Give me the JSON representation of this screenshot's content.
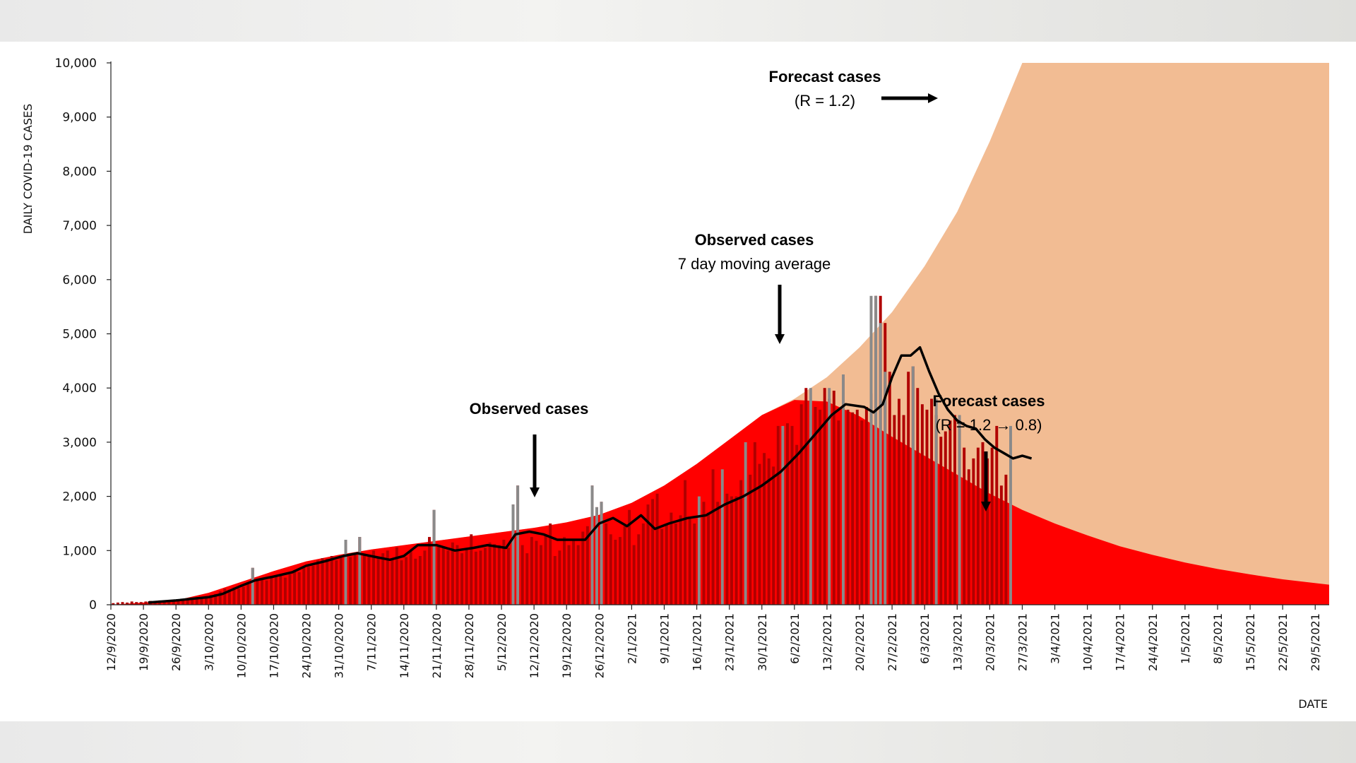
{
  "chart_data": {
    "type": "bar+line+area",
    "title": "",
    "ylabel": "DAILY COVID-19 CASES",
    "xlabel": "DATE",
    "ylim": [
      0,
      10000
    ],
    "yticks": [
      "0",
      "1,000",
      "2,000",
      "3,000",
      "4,000",
      "5,000",
      "6,000",
      "7,000",
      "8,000",
      "9,000",
      "10,000"
    ],
    "x_start": "12/9/2020",
    "x_end": "1/6/2021",
    "x_days": 262,
    "x_tick_labels": [
      "12/9/2020",
      "19/9/2020",
      "26/9/2020",
      "3/10/2020",
      "10/10/2020",
      "17/10/2020",
      "24/10/2020",
      "31/10/2020",
      "7/11/2020",
      "14/11/2020",
      "21/11/2020",
      "28/11/2020",
      "5/12/2020",
      "12/12/2020",
      "19/12/2020",
      "26/12/2020",
      "2/1/2021",
      "9/1/2021",
      "16/1/2021",
      "23/1/2021",
      "30/1/2021",
      "6/2/2021",
      "13/2/2021",
      "20/2/2021",
      "27/2/2021",
      "6/3/2021",
      "13/3/2021",
      "20/3/2021",
      "27/3/2021",
      "3/4/2021",
      "10/4/2021",
      "17/4/2021",
      "24/4/2021",
      "1/5/2021",
      "8/5/2021",
      "15/5/2021",
      "22/5/2021",
      "29/5/2021"
    ],
    "series": [
      {
        "name": "Forecast cases (R = 1.2)",
        "type": "area",
        "color": "#f2bc93",
        "points": [
          [
            0,
            0
          ],
          [
            14,
            80
          ],
          [
            21,
            220
          ],
          [
            28,
            420
          ],
          [
            35,
            620
          ],
          [
            42,
            800
          ],
          [
            49,
            920
          ],
          [
            56,
            1020
          ],
          [
            63,
            1100
          ],
          [
            70,
            1180
          ],
          [
            77,
            1260
          ],
          [
            84,
            1340
          ],
          [
            91,
            1420
          ],
          [
            98,
            1520
          ],
          [
            105,
            1660
          ],
          [
            112,
            1880
          ],
          [
            119,
            2200
          ],
          [
            126,
            2600
          ],
          [
            133,
            3050
          ],
          [
            140,
            3500
          ],
          [
            147,
            3800
          ],
          [
            154,
            4200
          ],
          [
            161,
            4750
          ],
          [
            168,
            5400
          ],
          [
            175,
            6250
          ],
          [
            182,
            7250
          ],
          [
            189,
            8550
          ],
          [
            196,
            10000
          ],
          [
            262,
            10000
          ]
        ]
      },
      {
        "name": "Forecast cases (R = 1.2 → 0.8)",
        "type": "area",
        "color": "#ff0000",
        "points": [
          [
            0,
            0
          ],
          [
            14,
            80
          ],
          [
            21,
            220
          ],
          [
            28,
            420
          ],
          [
            35,
            620
          ],
          [
            42,
            800
          ],
          [
            49,
            920
          ],
          [
            56,
            1020
          ],
          [
            63,
            1100
          ],
          [
            70,
            1180
          ],
          [
            77,
            1260
          ],
          [
            84,
            1340
          ],
          [
            91,
            1420
          ],
          [
            98,
            1520
          ],
          [
            105,
            1660
          ],
          [
            112,
            1880
          ],
          [
            119,
            2200
          ],
          [
            126,
            2600
          ],
          [
            133,
            3050
          ],
          [
            140,
            3500
          ],
          [
            147,
            3780
          ],
          [
            154,
            3750
          ],
          [
            161,
            3480
          ],
          [
            168,
            3100
          ],
          [
            175,
            2750
          ],
          [
            182,
            2400
          ],
          [
            189,
            2050
          ],
          [
            196,
            1750
          ],
          [
            203,
            1500
          ],
          [
            210,
            1280
          ],
          [
            217,
            1080
          ],
          [
            224,
            920
          ],
          [
            231,
            780
          ],
          [
            238,
            660
          ],
          [
            245,
            560
          ],
          [
            252,
            470
          ],
          [
            262,
            370
          ]
        ]
      },
      {
        "name": "Observed cases",
        "type": "bar",
        "color": "#b00000",
        "values": [
          30,
          40,
          50,
          40,
          60,
          50,
          50,
          60,
          70,
          50,
          80,
          60,
          90,
          70,
          80,
          100,
          110,
          120,
          140,
          150,
          160,
          180,
          200,
          250,
          300,
          280,
          320,
          300,
          330,
          400,
          680,
          480,
          460,
          450,
          500,
          520,
          540,
          500,
          560,
          640,
          600,
          680,
          700,
          720,
          820,
          860,
          850,
          900,
          820,
          900,
          1200,
          880,
          950,
          1250,
          920,
          900,
          1000,
          880,
          950,
          1000,
          850,
          1060,
          820,
          880,
          1000,
          850,
          900,
          1000,
          1250,
          1750,
          1100,
          1050,
          1000,
          1150,
          1100,
          950,
          1050,
          1300,
          980,
          1000,
          1050,
          1150,
          1120,
          1100,
          1200,
          1050,
          1850,
          2200,
          1100,
          950,
          1250,
          1180,
          1100,
          1300,
          1500,
          900,
          1000,
          1250,
          1100,
          1200,
          1100,
          1350,
          1450,
          2200,
          1800,
          1900,
          1500,
          1300,
          1200,
          1250,
          1450,
          1750,
          1100,
          1300,
          1500,
          1850,
          1950,
          2050,
          1400,
          1500,
          1700,
          1500,
          1650,
          2300,
          1600,
          1500,
          1600,
          1900,
          1700,
          2500,
          1900,
          2200,
          2050,
          2000,
          2000,
          2300,
          1950,
          2400,
          3000,
          2600,
          2800,
          2700,
          2550,
          3300,
          3200,
          3350,
          3300,
          2950,
          3700,
          4000,
          3500,
          3650,
          3600,
          4000,
          3800,
          3950,
          3400,
          4250,
          3600,
          3550,
          3600,
          3400,
          3650,
          3900,
          5700,
          5700,
          5200,
          4300,
          3500,
          3800,
          3500,
          4300,
          4400,
          4000,
          3700,
          3600,
          3800,
          3500,
          3100,
          3200,
          3400,
          3500,
          3400,
          2900,
          2500,
          2700,
          2900,
          3000,
          2700,
          2900,
          3300,
          2200,
          2400
        ],
        "gray_peaks": [
          [
            30,
            680
          ],
          [
            50,
            1200
          ],
          [
            53,
            1250
          ],
          [
            69,
            1750
          ],
          [
            86,
            1850
          ],
          [
            87,
            2200
          ],
          [
            103,
            2200
          ],
          [
            104,
            1800
          ],
          [
            105,
            1900
          ],
          [
            126,
            2000
          ],
          [
            131,
            2500
          ],
          [
            136,
            3000
          ],
          [
            144,
            3300
          ],
          [
            150,
            4000
          ],
          [
            154,
            4000
          ],
          [
            157,
            4250
          ],
          [
            163,
            5700
          ],
          [
            164,
            5700
          ],
          [
            165,
            5200
          ],
          [
            166,
            4300
          ],
          [
            172,
            4400
          ],
          [
            177,
            3800
          ],
          [
            182,
            3500
          ],
          [
            193,
            3300
          ]
        ]
      },
      {
        "name": "7 day moving average",
        "type": "line",
        "color": "#000000",
        "points": [
          [
            8,
            40
          ],
          [
            14,
            80
          ],
          [
            21,
            140
          ],
          [
            24,
            200
          ],
          [
            28,
            350
          ],
          [
            31,
            450
          ],
          [
            35,
            520
          ],
          [
            39,
            600
          ],
          [
            42,
            720
          ],
          [
            46,
            800
          ],
          [
            50,
            900
          ],
          [
            53,
            950
          ],
          [
            57,
            880
          ],
          [
            60,
            830
          ],
          [
            63,
            900
          ],
          [
            66,
            1100
          ],
          [
            70,
            1100
          ],
          [
            74,
            1000
          ],
          [
            78,
            1050
          ],
          [
            81,
            1100
          ],
          [
            85,
            1050
          ],
          [
            87,
            1300
          ],
          [
            90,
            1350
          ],
          [
            93,
            1300
          ],
          [
            96,
            1200
          ],
          [
            99,
            1200
          ],
          [
            102,
            1200
          ],
          [
            105,
            1500
          ],
          [
            108,
            1600
          ],
          [
            111,
            1450
          ],
          [
            114,
            1650
          ],
          [
            117,
            1400
          ],
          [
            120,
            1500
          ],
          [
            124,
            1600
          ],
          [
            128,
            1650
          ],
          [
            132,
            1850
          ],
          [
            136,
            2000
          ],
          [
            140,
            2200
          ],
          [
            144,
            2450
          ],
          [
            148,
            2800
          ],
          [
            151,
            3100
          ],
          [
            155,
            3500
          ],
          [
            158,
            3700
          ],
          [
            162,
            3650
          ],
          [
            164,
            3550
          ],
          [
            166,
            3700
          ],
          [
            168,
            4200
          ],
          [
            170,
            4600
          ],
          [
            172,
            4600
          ],
          [
            174,
            4750
          ],
          [
            176,
            4300
          ],
          [
            178,
            3900
          ],
          [
            180,
            3600
          ],
          [
            182,
            3400
          ],
          [
            184,
            3300
          ],
          [
            186,
            3250
          ],
          [
            188,
            3050
          ],
          [
            190,
            2900
          ],
          [
            192,
            2800
          ],
          [
            194,
            2700
          ],
          [
            196,
            2750
          ],
          [
            198,
            2700
          ]
        ]
      }
    ],
    "annotations": [
      {
        "id": "forecast_high",
        "lines": [
          "Forecast cases",
          "(R = 1.2)"
        ]
      },
      {
        "id": "moving_avg",
        "lines": [
          "Observed cases",
          "7 day moving average"
        ]
      },
      {
        "id": "observed",
        "lines": [
          "Observed cases"
        ]
      },
      {
        "id": "forecast_low",
        "lines": [
          "Forecast cases",
          "(R = 1.2 → 0.8)"
        ]
      }
    ],
    "colors": {
      "forecast_high": "#f2bc93",
      "forecast_low": "#ff0000",
      "bars": "#b00000",
      "bar_gray": "#8a8a8a",
      "line": "#000000"
    }
  }
}
